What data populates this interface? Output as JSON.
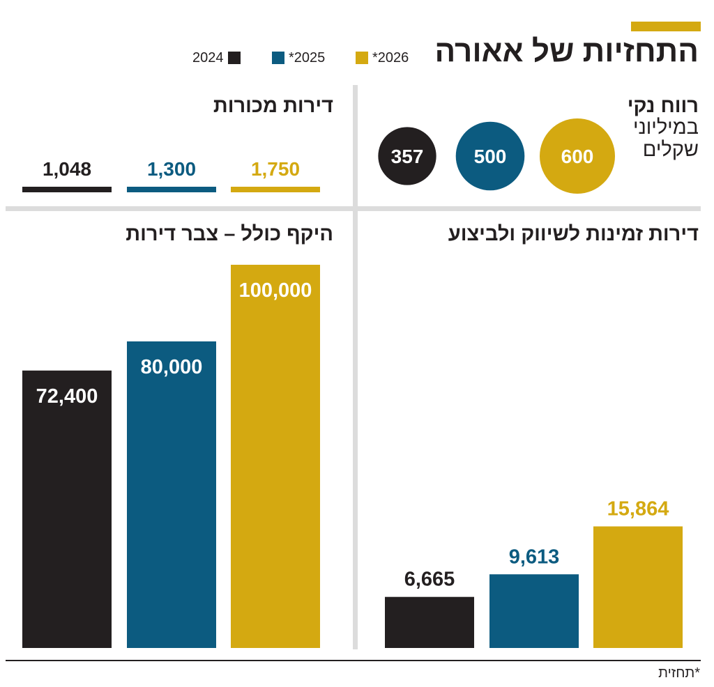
{
  "title": "התחזיות של אאורה",
  "legend": [
    {
      "label": "*2026",
      "color": "#d4a911"
    },
    {
      "label": "*2025",
      "color": "#0c5b80"
    },
    {
      "label": "2024",
      "color": "#231f20"
    }
  ],
  "footnote": "*תחזית",
  "colors": {
    "2024": "#231f20",
    "2025": "#0c5b80",
    "2026": "#d4a911",
    "divider": "#dcdcdc"
  },
  "chart_data": [
    {
      "type": "bubble",
      "title": "רווח נקי",
      "subtitle_line1": "במיליוני",
      "subtitle_line2": "שקלים",
      "categories": [
        "2024",
        "*2025",
        "*2026"
      ],
      "values": [
        357,
        500,
        600
      ],
      "labels": [
        "357",
        "500",
        "600"
      ]
    },
    {
      "type": "bar",
      "title": "דירות מכורות",
      "categories": [
        "2024",
        "*2025",
        "*2026"
      ],
      "values": [
        1048,
        1300,
        1750
      ],
      "labels": [
        "1,048",
        "1,300",
        "1,750"
      ]
    },
    {
      "type": "bar",
      "title": "דירות זמינות לשיווק ולביצוע",
      "categories": [
        "2024",
        "*2025",
        "*2026"
      ],
      "values": [
        6665,
        9613,
        15864
      ],
      "labels": [
        "6,665",
        "9,613",
        "15,864"
      ],
      "ylim": [
        0,
        50000
      ]
    },
    {
      "type": "bar",
      "title": "היקף כולל – צבר דירות",
      "categories": [
        "2024",
        "*2025",
        "*2026"
      ],
      "values": [
        72400,
        80000,
        100000
      ],
      "labels": [
        "72,400",
        "80,000",
        "100,000"
      ],
      "ylim": [
        0,
        100000
      ]
    }
  ]
}
